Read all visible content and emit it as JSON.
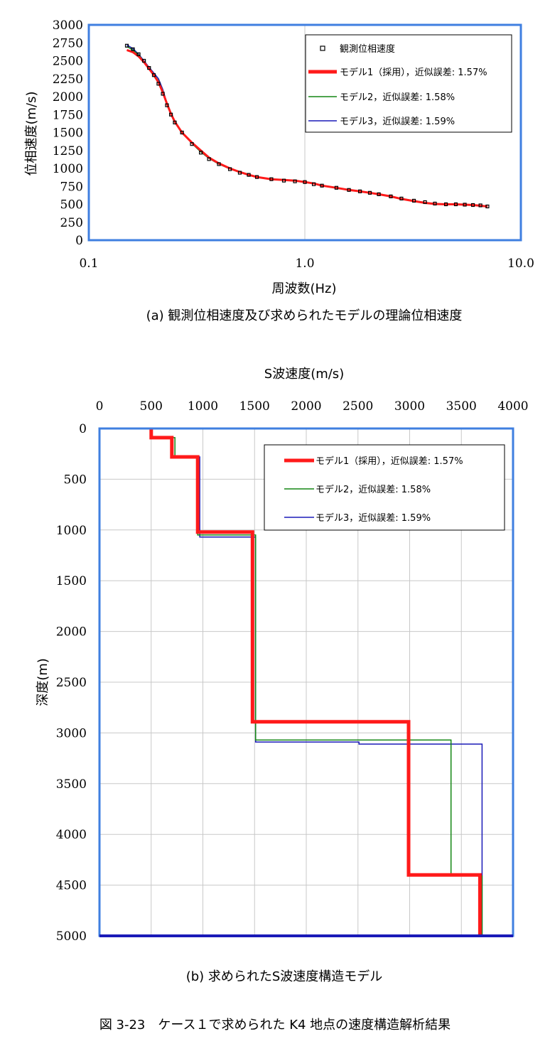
{
  "figure_caption": "図 3-23　ケース１で求められた K4 地点の速度構造解析結果",
  "colors": {
    "frame": "#3f7fe0",
    "grid": "#c8c8c8",
    "model1": "#ff1a1a",
    "model2": "#138613",
    "model3": "#1a1ab8",
    "observed": "#000000"
  },
  "chart_data": [
    {
      "id": "a",
      "type": "scatter",
      "caption": "(a)  観測位相速度及び求められたモデルの理論位相速度",
      "xlabel": "周波数(Hz)",
      "ylabel": "位相速度(m/s)",
      "xscale": "log",
      "xlim": [
        0.1,
        10.0
      ],
      "ylim": [
        0,
        3000
      ],
      "xticks": [
        "0.1",
        "1.0",
        "10.0"
      ],
      "yticks": [
        "0",
        "250",
        "500",
        "750",
        "1000",
        "1250",
        "1500",
        "1750",
        "2000",
        "2250",
        "2500",
        "2750",
        "3000"
      ],
      "grid": true,
      "legend_position": "top-right",
      "legend": [
        "観測位相速度",
        "モデル1（採用），近似誤差: 1.57%",
        "モデル2，近似誤差: 1.58%",
        "モデル3，近似誤差: 1.59%"
      ],
      "series": [
        {
          "name": "観測位相速度",
          "marker": "square",
          "x": [
            0.15,
            0.16,
            0.17,
            0.18,
            0.19,
            0.2,
            0.21,
            0.22,
            0.23,
            0.24,
            0.25,
            0.27,
            0.3,
            0.33,
            0.36,
            0.4,
            0.45,
            0.5,
            0.55,
            0.6,
            0.7,
            0.8,
            0.9,
            1.0,
            1.1,
            1.2,
            1.4,
            1.6,
            1.8,
            2.0,
            2.2,
            2.5,
            2.8,
            3.2,
            3.6,
            4.0,
            4.5,
            5.0,
            5.5,
            6.0,
            6.5,
            7.0
          ],
          "y": [
            2710,
            2660,
            2590,
            2500,
            2400,
            2300,
            2180,
            2040,
            1880,
            1750,
            1640,
            1500,
            1340,
            1220,
            1130,
            1060,
            990,
            940,
            910,
            880,
            850,
            830,
            820,
            810,
            780,
            760,
            730,
            700,
            680,
            660,
            640,
            610,
            580,
            550,
            530,
            510,
            500,
            500,
            495,
            490,
            485,
            470
          ]
        },
        {
          "name": "モデル1（採用），近似誤差: 1.57%",
          "x": [
            0.15,
            0.16,
            0.17,
            0.18,
            0.19,
            0.2,
            0.21,
            0.22,
            0.23,
            0.24,
            0.25,
            0.27,
            0.3,
            0.33,
            0.36,
            0.4,
            0.45,
            0.5,
            0.55,
            0.6,
            0.7,
            0.8,
            0.9,
            1.0,
            1.1,
            1.2,
            1.4,
            1.6,
            1.8,
            2.0,
            2.2,
            2.5,
            2.8,
            3.2,
            3.6,
            4.0,
            4.5,
            5.0,
            5.5,
            6.0,
            6.5,
            7.0
          ],
          "y": [
            2650,
            2620,
            2560,
            2480,
            2390,
            2300,
            2200,
            2060,
            1900,
            1760,
            1650,
            1500,
            1360,
            1250,
            1150,
            1070,
            1000,
            950,
            910,
            880,
            850,
            840,
            830,
            810,
            790,
            760,
            730,
            700,
            680,
            660,
            640,
            610,
            575,
            545,
            520,
            505,
            500,
            500,
            495,
            490,
            480,
            470
          ]
        },
        {
          "name": "モデル2，近似誤差: 1.58%",
          "x": [
            0.15,
            0.16,
            0.17,
            0.18,
            0.19,
            0.2,
            0.21,
            0.22,
            0.23,
            0.24,
            0.25,
            0.27,
            0.3,
            0.33,
            0.36,
            0.4,
            0.45,
            0.5,
            0.55,
            0.6,
            0.7,
            0.8,
            0.9,
            1.0,
            1.1,
            1.2,
            1.4,
            1.6,
            1.8,
            2.0,
            2.2,
            2.5,
            2.8,
            3.2,
            3.6,
            4.0,
            4.5,
            5.0,
            5.5,
            6.0,
            6.5,
            7.0
          ],
          "y": [
            2700,
            2650,
            2580,
            2490,
            2400,
            2310,
            2220,
            2080,
            1900,
            1760,
            1650,
            1500,
            1350,
            1230,
            1140,
            1060,
            995,
            945,
            910,
            880,
            850,
            835,
            825,
            810,
            785,
            760,
            730,
            700,
            680,
            660,
            640,
            610,
            580,
            550,
            525,
            510,
            500,
            500,
            495,
            490,
            482,
            470
          ]
        },
        {
          "name": "モデル3，近似誤差: 1.59%",
          "x": [
            0.15,
            0.16,
            0.17,
            0.18,
            0.19,
            0.2,
            0.21,
            0.22,
            0.23,
            0.24,
            0.25,
            0.27,
            0.3,
            0.33,
            0.36,
            0.4,
            0.45,
            0.5,
            0.55,
            0.6,
            0.7,
            0.8,
            0.9,
            1.0,
            1.1,
            1.2,
            1.4,
            1.6,
            1.8,
            2.0,
            2.2,
            2.5,
            2.8,
            3.2,
            3.6,
            4.0,
            4.5,
            5.0,
            5.5,
            6.0,
            6.5,
            7.0
          ],
          "y": [
            2720,
            2670,
            2590,
            2500,
            2410,
            2330,
            2250,
            2100,
            1910,
            1760,
            1650,
            1500,
            1350,
            1230,
            1140,
            1060,
            995,
            945,
            910,
            880,
            850,
            835,
            825,
            810,
            785,
            760,
            730,
            700,
            680,
            660,
            640,
            610,
            580,
            550,
            525,
            510,
            500,
            500,
            495,
            490,
            482,
            470
          ]
        }
      ]
    },
    {
      "id": "b",
      "type": "line",
      "caption": "(b)  求められたS波速度構造モデル",
      "xlabel": "S波速度(m/s)",
      "ylabel": "深度(m)",
      "xlim": [
        0,
        4000
      ],
      "ylim": [
        0,
        5000
      ],
      "y_inverted": true,
      "x_axis_position": "top",
      "xticks": [
        "0",
        "500",
        "1000",
        "1500",
        "2000",
        "2500",
        "3000",
        "3500",
        "4000"
      ],
      "yticks": [
        "0",
        "500",
        "1000",
        "1500",
        "2000",
        "2500",
        "3000",
        "3500",
        "4000",
        "4500",
        "5000"
      ],
      "grid": true,
      "legend_position": "top-right",
      "legend": [
        "モデル1（採用），近似誤差: 1.57%",
        "モデル2，近似誤差: 1.58%",
        "モデル3，近似誤差: 1.59%"
      ],
      "series": [
        {
          "name": "モデル1（採用），近似誤差: 1.57%",
          "velocity": [
            500,
            700,
            950,
            1480,
            2990,
            3680
          ],
          "top_depth": [
            0,
            90,
            280,
            1020,
            2890,
            4400
          ],
          "bottom_depth": 5000
        },
        {
          "name": "モデル2，近似誤差: 1.58%",
          "velocity": [
            500,
            730,
            950,
            1510,
            3400,
            3700
          ],
          "top_depth": [
            0,
            90,
            270,
            1050,
            3070,
            4410
          ],
          "bottom_depth": 5000
        },
        {
          "name": "モデル3，近似誤差: 1.59%",
          "velocity": [
            500,
            710,
            970,
            1510,
            2510,
            3700
          ],
          "top_depth": [
            0,
            90,
            280,
            1070,
            3090,
            3110
          ],
          "bottom_depth": 5000
        }
      ]
    }
  ]
}
